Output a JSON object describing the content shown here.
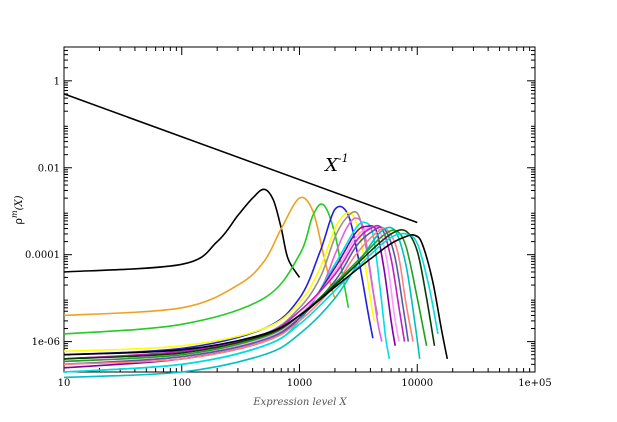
{
  "chart_data": {
    "type": "line",
    "xlabel": "Expression level X",
    "ylabel": "ρ",
    "ylabel_sup": "m",
    "ylabel_tail": "(X)",
    "x_scale": "log",
    "y_scale": "log",
    "xlim": [
      10,
      100000
    ],
    "ylim": [
      2e-07,
      6
    ],
    "x_ticks": [
      {
        "value": 10,
        "label": "10"
      },
      {
        "value": 100,
        "label": "100"
      },
      {
        "value": 1000,
        "label": "1000"
      },
      {
        "value": 10000,
        "label": "10000"
      },
      {
        "value": 100000,
        "label": "1e+05"
      }
    ],
    "y_ticks": [
      {
        "value": 1e-06,
        "label": "1e-06"
      },
      {
        "value": 0.0001,
        "label": "0.0001"
      },
      {
        "value": 0.01,
        "label": "0.01"
      },
      {
        "value": 1,
        "label": "1"
      }
    ],
    "grid": false,
    "legend": "none",
    "annotations": [
      {
        "text": "X",
        "sup": "-1",
        "x": 1650,
        "y": 0.0085
      }
    ],
    "reference_line": {
      "x": [
        10,
        10000
      ],
      "y": [
        0.5,
        0.00055
      ],
      "color": "#000000"
    },
    "series": [
      {
        "color": "#000000",
        "x": [
          10,
          100,
          200,
          300,
          400,
          500,
          600,
          700,
          800,
          1000
        ],
        "y": [
          4e-05,
          6e-05,
          0.0002,
          0.0008,
          0.002,
          0.0032,
          0.0018,
          0.0004,
          8e-05,
          3e-05
        ]
      },
      {
        "color": "#f0a020",
        "x": [
          10,
          100,
          300,
          500,
          700,
          1000,
          1300,
          1600,
          1900,
          2000
        ],
        "y": [
          4e-06,
          6e-06,
          2e-05,
          7e-05,
          0.0004,
          0.002,
          0.001,
          0.0001,
          1.5e-05,
          1e-05
        ]
      },
      {
        "color": "#22cc22",
        "x": [
          10,
          100,
          500,
          1000,
          1300,
          1600,
          2000,
          2400,
          2600
        ],
        "y": [
          1.5e-06,
          2.5e-06,
          1e-05,
          0.0001,
          0.0008,
          0.0014,
          0.0003,
          2e-05,
          6e-06
        ]
      },
      {
        "color": "#2020e0",
        "x": [
          10,
          100,
          500,
          1000,
          1500,
          2000,
          2600,
          3200,
          3800,
          4200
        ],
        "y": [
          5e-07,
          7e-07,
          2e-06,
          1e-05,
          0.00012,
          0.0011,
          0.0008,
          7e-05,
          5e-06,
          1.2e-06
        ]
      },
      {
        "color": "#ffff00",
        "x": [
          10,
          100,
          500,
          1000,
          1500,
          2000,
          2500,
          3000,
          3500,
          4000,
          4300
        ],
        "y": [
          6e-07,
          8e-07,
          2e-06,
          8e-06,
          5e-05,
          0.0004,
          0.0009,
          0.0006,
          0.0001,
          1e-05,
          3e-06
        ]
      },
      {
        "color": "#a09080",
        "x": [
          10,
          100,
          500,
          1000,
          1500,
          2000,
          2500,
          3100,
          3600,
          4200,
          4600
        ],
        "y": [
          4e-07,
          6e-07,
          1.5e-06,
          6e-06,
          3e-05,
          0.00025,
          0.0007,
          0.0009,
          0.0002,
          1.5e-05,
          4e-06
        ]
      },
      {
        "color": "#e060e0",
        "x": [
          10,
          100,
          500,
          1000,
          1500,
          2000,
          2500,
          3000,
          3500,
          4000,
          4600,
          5000
        ],
        "y": [
          3e-07,
          4.5e-07,
          1.2e-06,
          4e-06,
          1.5e-05,
          0.0001,
          0.0004,
          0.0007,
          0.0004,
          4e-05,
          3e-06,
          1e-06
        ]
      },
      {
        "color": "#00e0e0",
        "x": [
          10,
          100,
          500,
          1000,
          2000,
          3000,
          3600,
          4200,
          4800,
          5400,
          5800
        ],
        "y": [
          2e-07,
          3e-07,
          8e-07,
          3e-06,
          6e-05,
          0.0004,
          0.00055,
          0.0003,
          2e-05,
          1.2e-06,
          4e-07
        ]
      },
      {
        "color": "#8000a0",
        "x": [
          10,
          100,
          500,
          1000,
          2000,
          3000,
          3800,
          4500,
          5200,
          6000,
          6500
        ],
        "y": [
          2.5e-07,
          4e-07,
          1e-06,
          3.5e-06,
          5e-05,
          0.00032,
          0.00045,
          0.00035,
          5e-05,
          3e-06,
          8e-07
        ]
      },
      {
        "color": "#ff99ff",
        "x": [
          10,
          100,
          500,
          1000,
          2000,
          3000,
          4000,
          4800,
          5600,
          6400,
          7000
        ],
        "y": [
          3.5e-07,
          5e-07,
          1.2e-06,
          4e-06,
          4e-05,
          0.00025,
          0.00042,
          0.00035,
          6e-05,
          4e-06,
          1e-06
        ]
      },
      {
        "color": "#c020c0",
        "x": [
          10,
          100,
          500,
          1000,
          2000,
          3000,
          4000,
          5000,
          6000,
          7000,
          7800
        ],
        "y": [
          4e-07,
          6e-07,
          1.5e-06,
          5e-06,
          3.5e-05,
          0.0002,
          0.0004,
          0.0004,
          8e-05,
          6e-06,
          1e-06
        ]
      },
      {
        "color": "#5a5aa0",
        "x": [
          10,
          100,
          500,
          1000,
          2000,
          3000,
          4000,
          5200,
          6400,
          7600,
          8400
        ],
        "y": [
          3e-07,
          4.5e-07,
          1.1e-06,
          3.5e-06,
          2.5e-05,
          0.00015,
          0.00032,
          0.0004,
          0.0001,
          6e-06,
          1e-06
        ]
      },
      {
        "color": "#ff8080",
        "x": [
          10,
          100,
          500,
          1000,
          2000,
          3000,
          4500,
          5500,
          6800,
          8000,
          9200
        ],
        "y": [
          3e-07,
          4e-07,
          1e-06,
          3e-06,
          2e-05,
          0.0001,
          0.00032,
          0.00038,
          0.00012,
          8e-06,
          1e-06
        ]
      },
      {
        "color": "#00c0c0",
        "x": [
          10,
          100,
          500,
          1000,
          2000,
          3500,
          5000,
          6500,
          8000,
          9500,
          10500
        ],
        "y": [
          1.5e-07,
          2e-07,
          5e-07,
          1.5e-06,
          1e-05,
          0.0001,
          0.00035,
          0.00035,
          6e-05,
          3e-06,
          4e-07
        ]
      },
      {
        "color": "#20a020",
        "x": [
          10,
          100,
          500,
          1000,
          2000,
          3500,
          5000,
          6500,
          8000,
          10000,
          12000
        ],
        "y": [
          3.5e-07,
          5e-07,
          1.3e-06,
          4e-06,
          2.2e-05,
          0.0001,
          0.00026,
          0.00036,
          0.00016,
          1e-05,
          8e-07
        ]
      },
      {
        "color": "#0a3a0a",
        "x": [
          10,
          100,
          500,
          1000,
          2000,
          4000,
          6000,
          8000,
          10000,
          12000,
          14000
        ],
        "y": [
          4e-07,
          5.5e-07,
          1.4e-06,
          4e-06,
          2e-05,
          0.00012,
          0.0003,
          0.00035,
          0.00012,
          1e-05,
          8e-07
        ]
      },
      {
        "color": "#00dddd",
        "x": [
          10,
          100,
          500,
          1000,
          2000,
          4000,
          6000,
          8000,
          10000,
          12500,
          15000
        ],
        "y": [
          2e-07,
          3e-07,
          8e-07,
          2.5e-06,
          1.5e-05,
          0.0001,
          0.00025,
          0.0003,
          0.00018,
          2e-05,
          1.5e-06
        ]
      },
      {
        "color": "#000000",
        "x": [
          10,
          100,
          500,
          1000,
          2000,
          4000,
          6000,
          8000,
          9500,
          11000,
          13500,
          16000,
          18000
        ],
        "y": [
          5e-07,
          6.5e-07,
          1.5e-06,
          4e-06,
          1.8e-05,
          8e-05,
          0.00018,
          0.00026,
          0.00028,
          0.00018,
          2.5e-05,
          2e-06,
          4e-07
        ]
      }
    ]
  }
}
